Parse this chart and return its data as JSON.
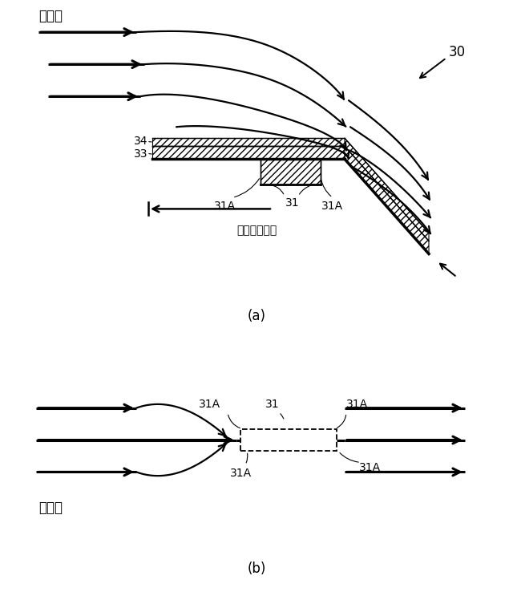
{
  "bg_color": "#ffffff",
  "fig_width": 6.4,
  "fig_height": 7.38,
  "dpi": 100,
  "label_a": "(a)",
  "label_b": "(b)",
  "text_sokofuu": "走行風",
  "text_30": "30",
  "text_31": "31",
  "text_33": "33",
  "text_34": "34",
  "text_deni": "電位低下領域"
}
